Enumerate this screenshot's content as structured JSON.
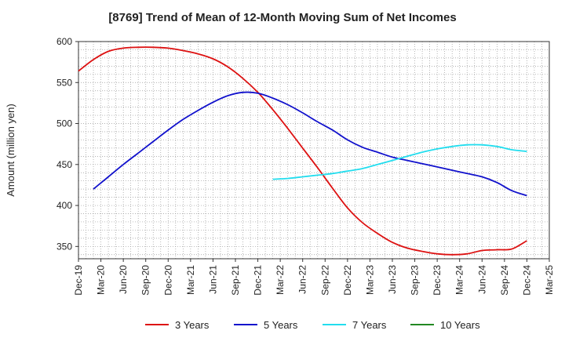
{
  "chart_data": {
    "type": "line",
    "title": "[8769]  Trend of Mean of 12-Month Moving Sum of Net Incomes",
    "xlabel": "",
    "ylabel": "Amount (million yen)",
    "ylim": [
      335,
      600
    ],
    "yticks": [
      350,
      400,
      450,
      500,
      550,
      600
    ],
    "xtick_labels": [
      "Dec-19",
      "Mar-20",
      "Jun-20",
      "Sep-20",
      "Dec-20",
      "Mar-21",
      "Jun-21",
      "Sep-21",
      "Dec-21",
      "Mar-22",
      "Jun-22",
      "Sep-22",
      "Dec-22",
      "Mar-23",
      "Jun-23",
      "Sep-23",
      "Dec-23",
      "Mar-24",
      "Jun-24",
      "Sep-24",
      "Dec-24",
      "Mar-25"
    ],
    "grid": true,
    "legend_position": "bottom",
    "series": [
      {
        "name": "3 Years",
        "color": "#dd1111",
        "x": [
          "Dec-19",
          "Feb-20",
          "Apr-20",
          "Jun-20",
          "Aug-20",
          "Oct-20",
          "Dec-20",
          "Feb-21",
          "Apr-21",
          "Jun-21",
          "Aug-21",
          "Oct-21",
          "Dec-21",
          "Feb-22",
          "Apr-22",
          "Jun-22",
          "Aug-22",
          "Oct-22",
          "Dec-22",
          "Feb-23",
          "Apr-23",
          "Jun-23",
          "Aug-23",
          "Oct-23",
          "Dec-23",
          "Feb-24",
          "Apr-24",
          "Jun-24",
          "Aug-24",
          "Oct-24",
          "Dec-24"
        ],
        "values": [
          564,
          578,
          588,
          592,
          593,
          593,
          592,
          589,
          585,
          579,
          569,
          555,
          538,
          517,
          494,
          470,
          446,
          421,
          397,
          379,
          366,
          355,
          348,
          344,
          341,
          340,
          341,
          345,
          346,
          347,
          357
        ]
      },
      {
        "name": "5 Years",
        "color": "#1111cc",
        "x": [
          "Feb-20",
          "Apr-20",
          "Jun-20",
          "Aug-20",
          "Oct-20",
          "Dec-20",
          "Feb-21",
          "Apr-21",
          "Jun-21",
          "Aug-21",
          "Oct-21",
          "Dec-21",
          "Feb-22",
          "Apr-22",
          "Jun-22",
          "Aug-22",
          "Oct-22",
          "Dec-22",
          "Feb-23",
          "Apr-23",
          "Jun-23",
          "Aug-23",
          "Oct-23",
          "Dec-23",
          "Feb-24",
          "Apr-24",
          "Jun-24",
          "Aug-24",
          "Oct-24",
          "Dec-24"
        ],
        "values": [
          420,
          435,
          450,
          464,
          478,
          492,
          505,
          516,
          526,
          534,
          538,
          537,
          531,
          523,
          513,
          502,
          492,
          480,
          471,
          465,
          459,
          455,
          451,
          447,
          443,
          439,
          435,
          428,
          418,
          412
        ]
      },
      {
        "name": "7 Years",
        "color": "#22ddee",
        "x": [
          "Feb-22",
          "Apr-22",
          "Jun-22",
          "Aug-22",
          "Oct-22",
          "Dec-22",
          "Feb-23",
          "Apr-23",
          "Jun-23",
          "Aug-23",
          "Oct-23",
          "Dec-23",
          "Feb-24",
          "Apr-24",
          "Jun-24",
          "Aug-24",
          "Oct-24",
          "Dec-24"
        ],
        "values": [
          432,
          433,
          435,
          437,
          439,
          442,
          445,
          450,
          455,
          460,
          465,
          469,
          472,
          474,
          474,
          472,
          468,
          466
        ]
      },
      {
        "name": "10 Years",
        "color": "#228822",
        "x": [],
        "values": []
      }
    ]
  }
}
